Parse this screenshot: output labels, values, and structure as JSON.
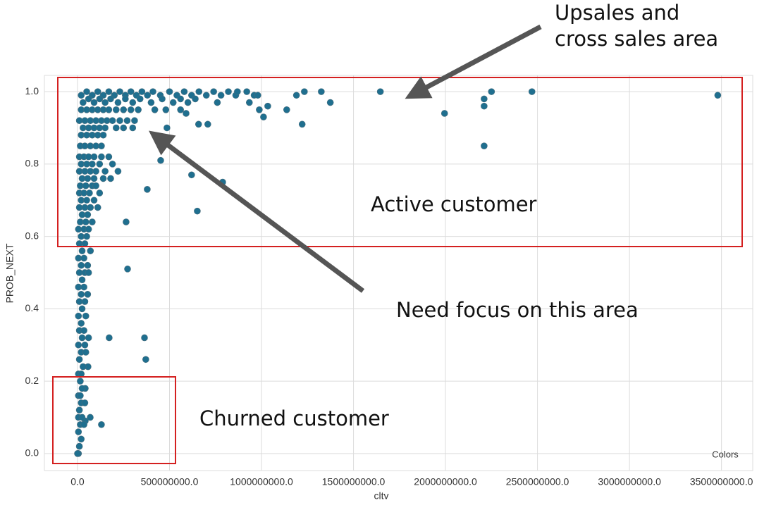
{
  "chart_data": {
    "type": "scatter",
    "x_label": "cltv",
    "y_label": "PROB_NEXT",
    "legend_title": "Colors",
    "color": "#1f6f8f",
    "grid": true,
    "xlim": [
      -180000000.0,
      3670000000.0
    ],
    "xticks": [
      {
        "value": 0,
        "label": "0.0"
      },
      {
        "value": 500000000.0,
        "label": "500000000.0"
      },
      {
        "value": 1000000000.0,
        "label": "1000000000.0"
      },
      {
        "value": 1500000000.0,
        "label": "1500000000.0"
      },
      {
        "value": 2000000000.0,
        "label": "2000000000.0"
      },
      {
        "value": 2500000000.0,
        "label": "2500000000.0"
      },
      {
        "value": 3000000000.0,
        "label": "3000000000.0"
      },
      {
        "value": 3500000000.0,
        "label": "3500000000.0"
      }
    ],
    "ylim": [
      -0.047,
      1.045
    ],
    "yticks": [
      {
        "value": 0,
        "label": "0.0"
      },
      0.2,
      0.4,
      0.6,
      0.8,
      {
        "value": 1,
        "label": "1.0"
      }
    ],
    "annotations": [
      {
        "lines": [
          "Upsales and",
          "cross sales area"
        ]
      },
      {
        "lines": [
          "Active customer"
        ]
      },
      {
        "lines": [
          "Need focus on this area"
        ]
      },
      {
        "lines": [
          "Churned customer"
        ]
      }
    ],
    "x": [
      20000000.0,
      50000000.0,
      80000000.0,
      110000000.0,
      140000000.0,
      170000000.0,
      200000000.0,
      230000000.0,
      260000000.0,
      290000000.0,
      320000000.0,
      350000000.0,
      380000000.0,
      410000000.0,
      450000000.0,
      500000000.0,
      540000000.0,
      580000000.0,
      620000000.0,
      660000000.0,
      700000000.0,
      740000000.0,
      780000000.0,
      820000000.0,
      860000000.0,
      920000000.0,
      960000000.0,
      30000000.0,
      60000000.0,
      90000000.0,
      120000000.0,
      150000000.0,
      180000000.0,
      220000000.0,
      260000000.0,
      300000000.0,
      340000000.0,
      400000000.0,
      460000000.0,
      520000000.0,
      560000000.0,
      600000000.0,
      640000000.0,
      760000000.0,
      20000000.0,
      50000000.0,
      80000000.0,
      110000000.0,
      140000000.0,
      170000000.0,
      210000000.0,
      250000000.0,
      290000000.0,
      330000000.0,
      420000000.0,
      480000000.0,
      560000000.0,
      10000000.0,
      40000000.0,
      70000000.0,
      100000000.0,
      130000000.0,
      160000000.0,
      190000000.0,
      230000000.0,
      270000000.0,
      310000000.0,
      30000000.0,
      60000000.0,
      90000000.0,
      120000000.0,
      150000000.0,
      210000000.0,
      250000000.0,
      300000000.0,
      20000000.0,
      50000000.0,
      80000000.0,
      110000000.0,
      140000000.0,
      3480000000.0,
      2470000000.0,
      2250000000.0,
      2210000000.0,
      2210000000.0,
      2210000000.0,
      1995000000.0,
      1646000000.0,
      1374000000.0,
      1325000000.0,
      1233000000.0,
      1221000000.0,
      1190000000.0,
      1137000000.0,
      1034000000.0,
      1011000000.0,
      988000000.0,
      980000000.0,
      934000000.0,
      869000000.0,
      789000000.0,
      708000000.0,
      658000000.0,
      651000000.0,
      620000000.0,
      590000000.0,
      486000000.0,
      452000000.0,
      379000000.0,
      364000000.0,
      371000000.0,
      272000000.0,
      264000000.0,
      172000000.0,
      130000000.0,
      69000000.0,
      42000000.0,
      57000000.0,
      42000000.0,
      15000000.0,
      40000000.0,
      70000000.0,
      100000000.0,
      130000000.0,
      10000000.0,
      35000000.0,
      60000000.0,
      90000000.0,
      130000000.0,
      170000000.0,
      20000000.0,
      50000000.0,
      80000000.0,
      120000000.0,
      190000000.0,
      10000000.0,
      40000000.0,
      70000000.0,
      100000000.0,
      150000000.0,
      220000000.0,
      25000000.0,
      55000000.0,
      90000000.0,
      140000000.0,
      180000000.0,
      15000000.0,
      45000000.0,
      80000000.0,
      100000000.0,
      10000000.0,
      35000000.0,
      65000000.0,
      120000000.0,
      20000000.0,
      50000000.0,
      90000000.0,
      10000000.0,
      40000000.0,
      70000000.0,
      110000000.0,
      25000000.0,
      55000000.0,
      15000000.0,
      45000000.0,
      80000000.0,
      5000000.0,
      35000000.0,
      60000000.0,
      20000000.0,
      50000000.0,
      10000000.0,
      40000000.0,
      25000000.0,
      70000000.0,
      5000000.0,
      35000000.0,
      20000000.0,
      55000000.0,
      10000000.0,
      40000000.0,
      60000000.0,
      25000000.0,
      5000000.0,
      35000000.0,
      20000000.0,
      55000000.0,
      10000000.0,
      40000000.0,
      25000000.0,
      5000000.0,
      45000000.0,
      20000000.0,
      10000000.0,
      35000000.0,
      25000000.0,
      60000000.0,
      5000000.0,
      40000000.0,
      20000000.0,
      45000000.0,
      10000000.0,
      30000000.0,
      5000000.0,
      20000000.0,
      15000000.0,
      25000000.0,
      5000000.0,
      15000000.0,
      20000000.0,
      40000000.0,
      10000000.0,
      5000000.0,
      25000000.0,
      15000000.0,
      35000000.0,
      5000000.0,
      20000000.0,
      10000000.0,
      5000000.0,
      0
    ],
    "values": [
      0.99,
      1.0,
      0.99,
      1.0,
      0.99,
      1.0,
      0.99,
      1.0,
      0.99,
      1.0,
      0.99,
      1.0,
      0.99,
      1.0,
      0.99,
      1.0,
      0.99,
      1.0,
      0.99,
      1.0,
      0.99,
      1.0,
      0.99,
      1.0,
      0.99,
      1.0,
      0.99,
      0.97,
      0.98,
      0.97,
      0.98,
      0.97,
      0.98,
      0.97,
      0.98,
      0.97,
      0.98,
      0.97,
      0.98,
      0.97,
      0.98,
      0.97,
      0.98,
      0.97,
      0.95,
      0.95,
      0.95,
      0.95,
      0.95,
      0.95,
      0.95,
      0.95,
      0.95,
      0.95,
      0.95,
      0.95,
      0.95,
      0.92,
      0.92,
      0.92,
      0.92,
      0.92,
      0.92,
      0.92,
      0.92,
      0.92,
      0.92,
      0.9,
      0.9,
      0.9,
      0.9,
      0.9,
      0.9,
      0.9,
      0.9,
      0.88,
      0.88,
      0.88,
      0.88,
      0.88,
      0.99,
      1.0,
      1.0,
      0.98,
      0.96,
      0.85,
      0.94,
      1.0,
      0.97,
      1.0,
      1.0,
      0.91,
      0.99,
      0.95,
      0.96,
      0.93,
      0.95,
      0.99,
      0.97,
      1.0,
      0.75,
      0.91,
      0.91,
      0.67,
      0.77,
      0.94,
      0.9,
      0.81,
      0.73,
      0.32,
      0.26,
      0.51,
      0.64,
      0.32,
      0.08,
      0.1,
      0.09,
      0.24,
      0.18,
      0.85,
      0.85,
      0.85,
      0.85,
      0.85,
      0.82,
      0.82,
      0.82,
      0.82,
      0.82,
      0.82,
      0.8,
      0.8,
      0.8,
      0.8,
      0.8,
      0.78,
      0.78,
      0.78,
      0.78,
      0.78,
      0.78,
      0.76,
      0.76,
      0.76,
      0.76,
      0.76,
      0.74,
      0.74,
      0.74,
      0.74,
      0.72,
      0.72,
      0.72,
      0.72,
      0.7,
      0.7,
      0.7,
      0.68,
      0.68,
      0.68,
      0.68,
      0.66,
      0.66,
      0.64,
      0.64,
      0.64,
      0.62,
      0.62,
      0.62,
      0.6,
      0.6,
      0.58,
      0.58,
      0.56,
      0.56,
      0.54,
      0.54,
      0.52,
      0.52,
      0.5,
      0.5,
      0.5,
      0.48,
      0.46,
      0.46,
      0.44,
      0.44,
      0.42,
      0.42,
      0.4,
      0.38,
      0.38,
      0.36,
      0.34,
      0.34,
      0.32,
      0.32,
      0.3,
      0.3,
      0.28,
      0.28,
      0.26,
      0.24,
      0.22,
      0.22,
      0.2,
      0.18,
      0.16,
      0.16,
      0.14,
      0.14,
      0.12,
      0.1,
      0.1,
      0.08,
      0.08,
      0.06,
      0.04,
      0.02,
      0.0,
      0.0
    ]
  }
}
